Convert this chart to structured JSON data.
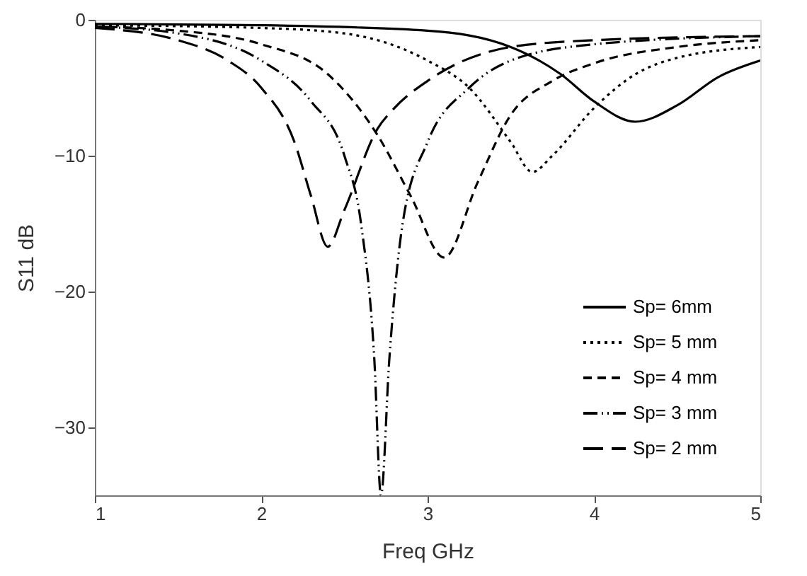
{
  "chart_data": {
    "type": "line",
    "xlabel": "Freq GHz",
    "ylabel": "S11 dB",
    "xlim": [
      1,
      5
    ],
    "ylim": [
      -35,
      0
    ],
    "xticks": [
      1,
      2,
      3,
      4,
      5
    ],
    "yticks": [
      0,
      -10,
      -20,
      -30
    ],
    "grid": false,
    "legend": "bottom right",
    "marker": "none",
    "series": [
      {
        "name": "Sp=  6mm",
        "color": "#000000",
        "line_style": "solid",
        "x": [
          1,
          2,
          3,
          3.5,
          3.8,
          4,
          4.25,
          4.5,
          4.75,
          5
        ],
        "values": [
          -0.3,
          -0.4,
          -0.8,
          -2,
          -4,
          -6,
          -7.5,
          -6.3,
          -4.2,
          -3
        ]
      },
      {
        "name": "Sp=  5 mm",
        "color": "#000000",
        "line_style": "dotted",
        "x": [
          1,
          2,
          2.5,
          3,
          3.25,
          3.5,
          3.63,
          3.75,
          4,
          4.25,
          4.5,
          5
        ],
        "values": [
          -0.4,
          -0.6,
          -1,
          -3,
          -5,
          -9,
          -11.2,
          -10,
          -6.5,
          -4,
          -2.8,
          -2
        ]
      },
      {
        "name": "Sp=  4 mm",
        "color": "#000000",
        "line_style": "dashed",
        "x": [
          1,
          1.5,
          2,
          2.4,
          2.7,
          2.9,
          3.1,
          3.3,
          3.5,
          3.75,
          4,
          4.5,
          5
        ],
        "values": [
          -0.5,
          -0.8,
          -1.8,
          -4,
          -8.5,
          -13,
          -17.5,
          -12,
          -7,
          -4.5,
          -3.2,
          -2,
          -1.5
        ]
      },
      {
        "name": "Sp=  3 mm",
        "color": "#000000",
        "line_style": "dashdotdot",
        "x": [
          1,
          1.5,
          2,
          2.3,
          2.5,
          2.6,
          2.68,
          2.72,
          2.77,
          2.85,
          3,
          3.25,
          3.5,
          4,
          5
        ],
        "values": [
          -0.5,
          -1,
          -3,
          -6,
          -10,
          -15,
          -25,
          -35,
          -25,
          -15,
          -9,
          -5,
          -3,
          -1.8,
          -1.2
        ]
      },
      {
        "name": "Sp=  2 mm",
        "color": "#000000",
        "line_style": "longdash",
        "x": [
          1,
          1.5,
          1.8,
          2,
          2.2,
          2.3,
          2.4,
          2.5,
          2.7,
          2.8,
          3,
          3.5,
          4,
          5
        ],
        "values": [
          -0.6,
          -1.5,
          -3,
          -5,
          -9,
          -13,
          -16.7,
          -14,
          -8,
          -6.5,
          -4.5,
          -2,
          -1.5,
          -1.2
        ]
      }
    ]
  }
}
